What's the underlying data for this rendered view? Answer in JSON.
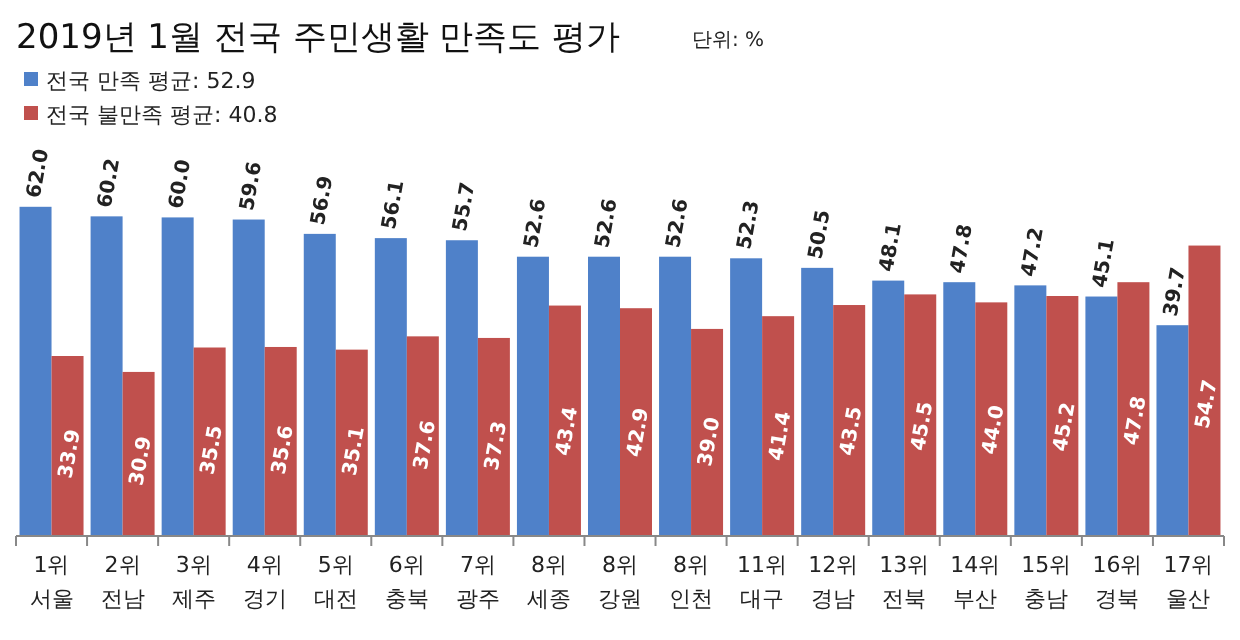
{
  "chart_data": {
    "type": "bar",
    "title": "2019년 1월 전국 주민생활 만족도 평가",
    "annotations": [
      "단위: %"
    ],
    "categories": [
      "1위\n서울",
      "2위\n전남",
      "3위\n제주",
      "4위\n경기",
      "5위\n대전",
      "6위\n충북",
      "7위\n광주",
      "8위\n세종",
      "8위\n강원",
      "8위\n인천",
      "11위\n대구",
      "12위\n경남",
      "13위\n전북",
      "14위\n부산",
      "15위\n충남",
      "16위\n경북",
      "17위\n울산"
    ],
    "series": [
      {
        "name": "전국 만족 평균: 52.9",
        "color": "#4f81c9",
        "values": [
          62.0,
          60.2,
          60.0,
          59.6,
          56.9,
          56.1,
          55.7,
          52.6,
          52.6,
          52.6,
          52.3,
          50.5,
          48.1,
          47.8,
          47.2,
          45.1,
          39.7
        ],
        "value_labels": [
          "62.0",
          "60.2",
          "60.0",
          "59.6",
          "56.9",
          "56.1",
          "55.7",
          "52.6",
          "52.6",
          "52.6",
          "52.3",
          "50.5",
          "48.1",
          "47.8",
          "47.2",
          "45.1",
          "39.7"
        ]
      },
      {
        "name": "전국 불만족 평균: 40.8",
        "color": "#c0504d",
        "values": [
          33.9,
          30.9,
          35.5,
          35.6,
          35.1,
          37.6,
          37.3,
          43.4,
          42.9,
          39.0,
          41.4,
          43.5,
          45.5,
          44.0,
          45.2,
          47.8,
          54.7
        ],
        "value_labels": [
          "33.9",
          "30.9",
          "35.5",
          "35.6",
          "35.1",
          "37.6",
          "37.3",
          "43.4",
          "42.9",
          "39.0",
          "41.4",
          "43.5",
          "45.5",
          "44.0",
          "45.2",
          "47.8",
          "54.7"
        ]
      }
    ],
    "tick_labels": "x",
    "legend": "top left"
  }
}
